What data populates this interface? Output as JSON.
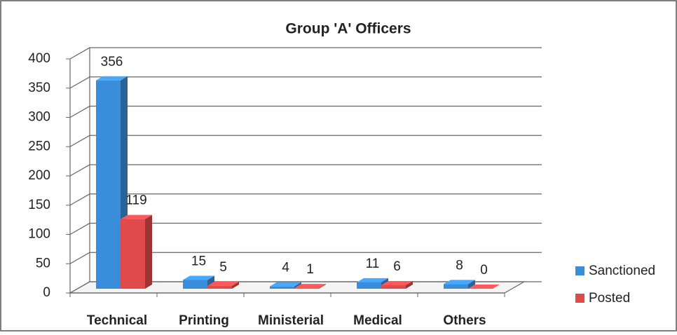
{
  "chart_data": {
    "type": "bar3d",
    "title": "Group 'A' Officers",
    "categories": [
      "Technical",
      "Printing",
      "Ministerial",
      "Medical",
      "Others"
    ],
    "series": [
      {
        "name": "Sanctioned",
        "color": "#3a8ddb",
        "values": [
          356,
          15,
          4,
          11,
          8
        ]
      },
      {
        "name": "Posted",
        "color": "#e04a4a",
        "values": [
          119,
          5,
          1,
          6,
          0
        ]
      }
    ],
    "ylim": [
      0,
      400
    ],
    "yticks": [
      0,
      50,
      100,
      150,
      200,
      250,
      300,
      350,
      400
    ],
    "grid": true,
    "legend": "right"
  }
}
